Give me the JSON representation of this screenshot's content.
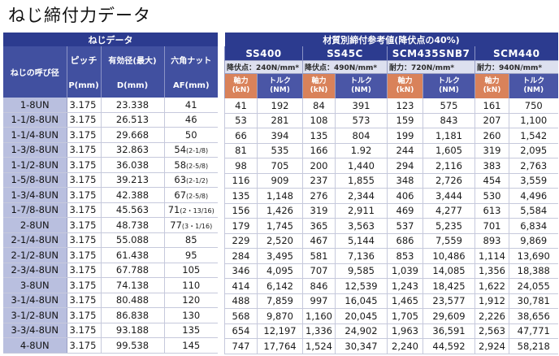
{
  "title": "ねじ締付力データ",
  "left_header": {
    "group": "ねじデータ",
    "name_col": "ねじの呼び径",
    "pitch": "ピッチ",
    "pitch_unit": "P(mm)",
    "effective": "有効径(最大)",
    "effective_unit": "D(mm)",
    "hex": "六角ナット",
    "hex_unit": "AF(mm)"
  },
  "right_header": {
    "group": "材質別締付参考値(降伏点の40%)",
    "grades": [
      {
        "name": "SS400",
        "yield": "降伏点：240N/mm*"
      },
      {
        "name": "SS45C",
        "yield": "降伏点：490N/mm*"
      },
      {
        "name": "SCM435SNB7",
        "yield": "耐力：720N/mm*"
      },
      {
        "name": "SCM440",
        "yield": "耐力：940N/mm*"
      }
    ],
    "axial_1": "軸力",
    "axial_2": "(kN)",
    "torque_1": "トルク",
    "torque_2": "(NM)"
  },
  "rows": [
    {
      "name": "1-8UN",
      "p": "3.175",
      "d": "23.338",
      "af": "41",
      "af_note": "",
      "v": [
        "41",
        "192",
        "84",
        "391",
        "123",
        "575",
        "161",
        "750"
      ]
    },
    {
      "name": "1-1/8-8UN",
      "p": "3.175",
      "d": "26.513",
      "af": "46",
      "af_note": "",
      "v": [
        "53",
        "281",
        "108",
        "573",
        "159",
        "843",
        "207",
        "1,100"
      ]
    },
    {
      "name": "1-1/4-8UN",
      "p": "3.175",
      "d": "29.668",
      "af": "50",
      "af_note": "",
      "v": [
        "66",
        "394",
        "135",
        "804",
        "199",
        "1,181",
        "260",
        "1,542"
      ]
    },
    {
      "name": "1-3/8-8UN",
      "p": "3.175",
      "d": "32.863",
      "af": "54",
      "af_note": "(2-1/8)",
      "v": [
        "81",
        "535",
        "166",
        "1.92",
        "244",
        "1,605",
        "319",
        "2,095"
      ]
    },
    {
      "name": "1-1/2-8UN",
      "p": "3.175",
      "d": "36.038",
      "af": "58",
      "af_note": "(2-5/8)",
      "v": [
        "98",
        "705",
        "200",
        "1,440",
        "294",
        "2,116",
        "383",
        "2,763"
      ]
    },
    {
      "name": "1-5/8-8UN",
      "p": "3.175",
      "d": "39.213",
      "af": "63",
      "af_note": "(2-1/2)",
      "v": [
        "116",
        "909",
        "237",
        "1,855",
        "348",
        "2,726",
        "454",
        "3,559"
      ]
    },
    {
      "name": "1-3/4-8UN",
      "p": "3.175",
      "d": "42.388",
      "af": "67",
      "af_note": "(2-5/8)",
      "v": [
        "135",
        "1,148",
        "276",
        "2,344",
        "406",
        "3,444",
        "530",
        "4,496"
      ]
    },
    {
      "name": "1-7/8-8UN",
      "p": "3.175",
      "d": "45.563",
      "af": "71",
      "af_note": "(2・13/16)",
      "v": [
        "156",
        "1,426",
        "319",
        "2,911",
        "469",
        "4,277",
        "613",
        "5,584"
      ]
    },
    {
      "name": "2-8UN",
      "p": "3.175",
      "d": "48.738",
      "af": "77",
      "af_note": "(3・1/16)",
      "v": [
        "179",
        "1,745",
        "365",
        "3,563",
        "537",
        "5,235",
        "701",
        "6,834"
      ]
    },
    {
      "name": "2-1/4-8UN",
      "p": "3.175",
      "d": "55.088",
      "af": "85",
      "af_note": "",
      "v": [
        "229",
        "2,520",
        "467",
        "5,144",
        "686",
        "7,559",
        "893",
        "9,869"
      ]
    },
    {
      "name": "2-1/2-8UN",
      "p": "3.175",
      "d": "61.438",
      "af": "95",
      "af_note": "",
      "v": [
        "284",
        "3,495",
        "581",
        "7,136",
        "853",
        "10,486",
        "1,114",
        "13,690"
      ]
    },
    {
      "name": "2-3/4-8UN",
      "p": "3.175",
      "d": "67.788",
      "af": "105",
      "af_note": "",
      "v": [
        "346",
        "4,095",
        "707",
        "9,585",
        "1,039",
        "14,085",
        "1,356",
        "18,388"
      ]
    },
    {
      "name": "3-8UN",
      "p": "3.175",
      "d": "74.138",
      "af": "110",
      "af_note": "",
      "v": [
        "414",
        "6,142",
        "846",
        "12,539",
        "1,243",
        "18,425",
        "1,622",
        "24,055"
      ]
    },
    {
      "name": "3-1/4-8UN",
      "p": "3.175",
      "d": "80.488",
      "af": "120",
      "af_note": "",
      "v": [
        "488",
        "7,859",
        "997",
        "16,045",
        "1,465",
        "23,577",
        "1,912",
        "30,781"
      ]
    },
    {
      "name": "3-1/2-8UN",
      "p": "3.175",
      "d": "86.838",
      "af": "130",
      "af_note": "",
      "v": [
        "568",
        "9,870",
        "1,160",
        "20,045",
        "1,705",
        "29,609",
        "2,226",
        "38,656"
      ]
    },
    {
      "name": "3-3/4-8UN",
      "p": "3.175",
      "d": "93.188",
      "af": "135",
      "af_note": "",
      "v": [
        "654",
        "12,197",
        "1,336",
        "24,902",
        "1,963",
        "36,591",
        "2,563",
        "47,771"
      ]
    },
    {
      "name": "4-8UN",
      "p": "3.175",
      "d": "99.538",
      "af": "145",
      "af_note": "",
      "v": [
        "747",
        "17,764",
        "1,524",
        "30,347",
        "2,240",
        "44,592",
        "2,924",
        "58,218"
      ]
    }
  ]
}
